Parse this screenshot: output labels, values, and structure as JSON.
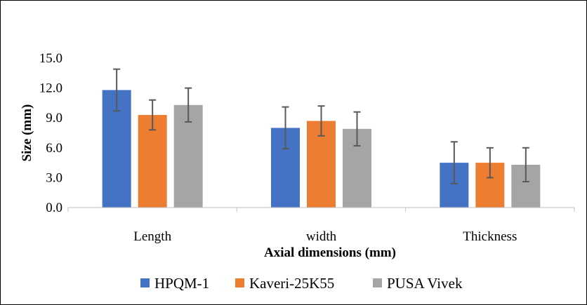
{
  "chart_data": {
    "type": "bar",
    "title": "",
    "xlabel": "Axial dimensions (mm)",
    "ylabel": "Size (mm)",
    "ylim": [
      0,
      15
    ],
    "yticks": [
      "0.0",
      "3.0",
      "6.0",
      "9.0",
      "12.0",
      "15.0"
    ],
    "categories": [
      "Length",
      "width",
      "Thickness"
    ],
    "series": [
      {
        "name": "HPQM-1",
        "color": "#4472C4",
        "values": [
          11.8,
          8.0,
          4.5
        ],
        "errors": [
          2.1,
          2.1,
          2.1
        ]
      },
      {
        "name": "Kaveri-25K55",
        "color": "#ED7D31",
        "values": [
          9.3,
          8.7,
          4.5
        ],
        "errors": [
          1.5,
          1.5,
          1.5
        ]
      },
      {
        "name": "PUSA Vivek",
        "color": "#A5A5A5",
        "values": [
          10.3,
          7.9,
          4.3
        ],
        "errors": [
          1.7,
          1.7,
          1.7
        ]
      }
    ],
    "grid": false,
    "legend_position": "bottom"
  }
}
